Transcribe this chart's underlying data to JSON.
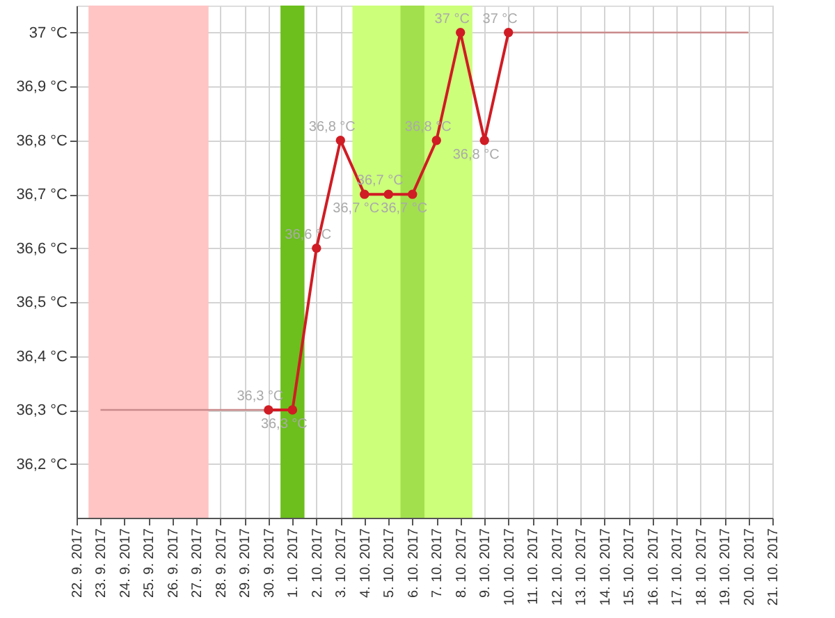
{
  "chart_data": {
    "type": "line",
    "categories": [
      "22. 9. 2017",
      "23. 9. 2017",
      "24. 9. 2017",
      "25. 9. 2017",
      "26. 9. 2017",
      "27. 9. 2017",
      "28. 9. 2017",
      "29. 9. 2017",
      "30. 9. 2017",
      "1. 10. 2017",
      "2. 10. 2017",
      "3. 10. 2017",
      "4. 10. 2017",
      "5. 10. 2017",
      "6. 10. 2017",
      "7. 10. 2017",
      "8. 10. 2017",
      "9. 10. 2017",
      "10. 10. 2017",
      "11. 10. 2017",
      "12. 10. 2017",
      "13. 10. 2017",
      "14. 10. 2017",
      "15. 10. 2017",
      "16. 10. 2017",
      "17. 10. 2017",
      "18. 10. 2017",
      "19. 10. 2017",
      "20. 10. 2017",
      "21. 10. 2017"
    ],
    "series": [
      {
        "color": "#c98a8a",
        "marker": "none",
        "values": [
          null,
          36.3,
          36.3,
          36.3,
          36.3,
          36.3,
          36.3,
          36.3,
          36.3,
          null,
          null,
          null,
          null,
          null,
          null,
          null,
          null,
          null,
          null,
          null,
          null,
          null,
          null,
          null,
          null,
          null,
          null,
          null,
          null,
          null
        ]
      },
      {
        "color": "#c98a8a",
        "marker": "none",
        "values": [
          null,
          null,
          null,
          null,
          null,
          null,
          null,
          null,
          null,
          null,
          null,
          null,
          null,
          null,
          null,
          null,
          null,
          null,
          37,
          37,
          37,
          37,
          37,
          37,
          37,
          37,
          37,
          37,
          37,
          null
        ]
      },
      {
        "color": "#d01c24",
        "marker": "circle",
        "values": [
          null,
          null,
          null,
          null,
          null,
          null,
          null,
          null,
          36.3,
          36.3,
          36.6,
          36.8,
          36.7,
          36.7,
          36.7,
          36.8,
          37,
          36.8,
          37,
          null,
          null,
          null,
          null,
          null,
          null,
          null,
          null,
          null,
          null,
          null
        ],
        "value_labels": [
          null,
          null,
          null,
          null,
          null,
          null,
          null,
          null,
          "36,3 °C",
          "36,3 °C",
          "36,6 °C",
          "36,8 °C",
          "36,7 °C",
          "36,7 °C",
          "36,7 °C",
          "36,8 °C",
          "37 °C",
          "36,8 °C",
          "37 °C",
          null,
          null,
          null,
          null,
          null,
          null,
          null,
          null,
          null,
          null,
          null
        ]
      }
    ],
    "ylim": [
      36.1,
      37.05
    ],
    "yticks": [
      {
        "value": 36.2,
        "label": "36,2 °C"
      },
      {
        "value": 36.3,
        "label": "36,3 °C"
      },
      {
        "value": 36.4,
        "label": "36,4 °C"
      },
      {
        "value": 36.5,
        "label": "36,5 °C"
      },
      {
        "value": 36.6,
        "label": "36,6 °C"
      },
      {
        "value": 36.7,
        "label": "36,7 °C"
      },
      {
        "value": 36.8,
        "label": "36,8 °C"
      },
      {
        "value": 36.9,
        "label": "36,9 °C"
      },
      {
        "value": 37,
        "label": "37 °C"
      }
    ],
    "bands": [
      {
        "axis": "x",
        "from": "23. 9. 2017",
        "to": "27. 9. 2017",
        "color": "#ffc4c4"
      },
      {
        "axis": "x",
        "from": "1. 10. 2017",
        "to": "1. 10. 2017",
        "color": "#6cbf1c"
      },
      {
        "axis": "x",
        "from": "4. 10. 2017",
        "to": "8. 10. 2017",
        "color": "#ccff7a"
      },
      {
        "axis": "x",
        "from": "6. 10. 2017",
        "to": "6. 10. 2017",
        "color": "#a2e04e"
      }
    ],
    "grid": true
  }
}
